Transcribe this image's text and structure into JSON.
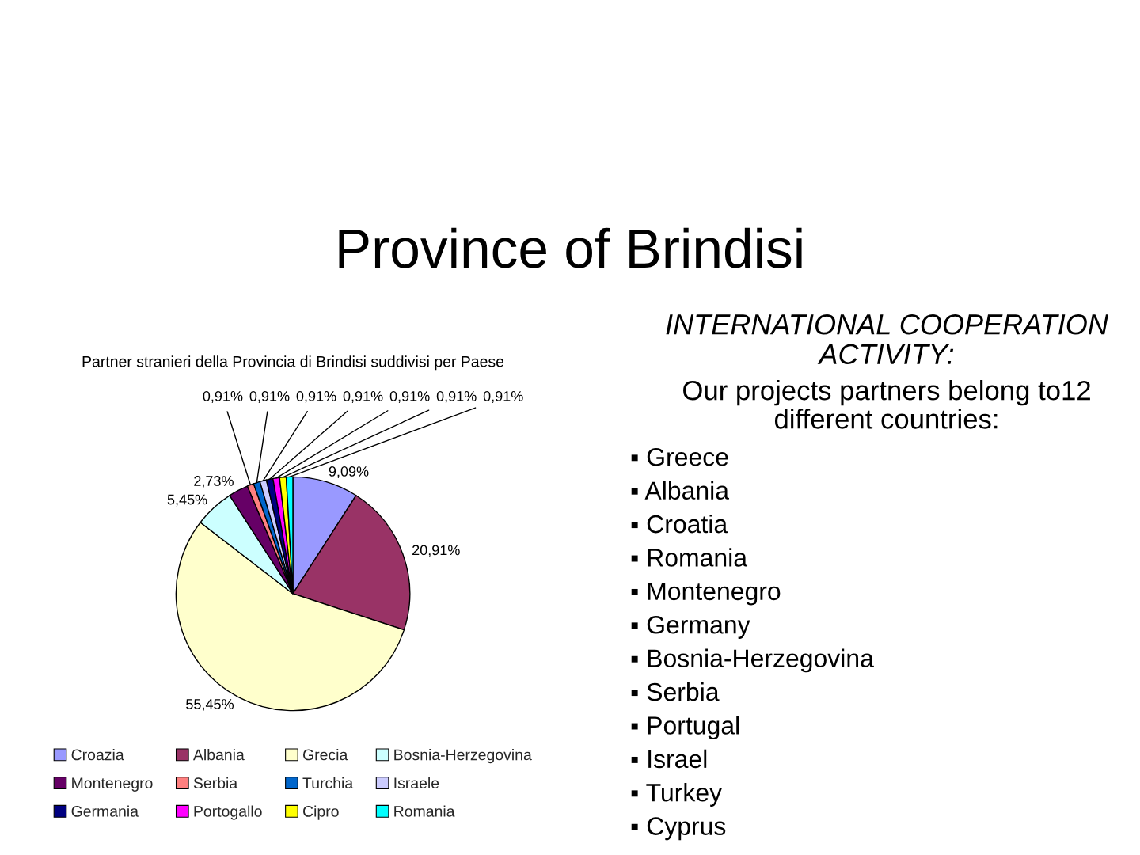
{
  "chart_data": [
    {
      "type": "other",
      "title": "Province of Brindisi"
    },
    {
      "type": "pie",
      "title": "Partner stranieri della Provincia di Brindisi suddivisi per Paese",
      "categories": [
        "Croazia",
        "Albania",
        "Grecia",
        "Bosnia-Herzegovina",
        "Montenegro",
        "Serbia",
        "Turchia",
        "Israele",
        "Germania",
        "Portogallo",
        "Cipro",
        "Romania"
      ],
      "values": [
        9.09,
        20.91,
        55.45,
        5.45,
        2.73,
        0.91,
        0.91,
        0.91,
        0.91,
        0.91,
        0.91,
        0.91
      ],
      "colors": [
        "#9999ff",
        "#993366",
        "#ffffcc",
        "#ccffff",
        "#660066",
        "#ff8080",
        "#0066cc",
        "#ccccff",
        "#000080",
        "#ff00ff",
        "#ffff00",
        "#00ffff"
      ],
      "value_labels": [
        "9,09%",
        "20,91%",
        "55,45%",
        "5,45%",
        "2,73%",
        "0,91%",
        "0,91%",
        "0,91%",
        "0,91%",
        "0,91%",
        "0,91%",
        "0,91%"
      ],
      "legend": "bottom"
    },
    {
      "type": "other",
      "title": "INTERNATIONAL COOPERATION ACTIVITY:",
      "subtitle": "Our projects partners belong to12 different countries:",
      "annotations": [
        "▪ Greece",
        "▪ Albania",
        "▪ Croatia",
        "▪ Romania",
        "▪ Montenegro",
        "▪ Germany",
        "▪ Bosnia-Herzegovina",
        "▪ Serbia",
        "▪ Portugal",
        "▪ Israel",
        "▪ Turkey",
        "▪ Cyprus"
      ]
    }
  ]
}
